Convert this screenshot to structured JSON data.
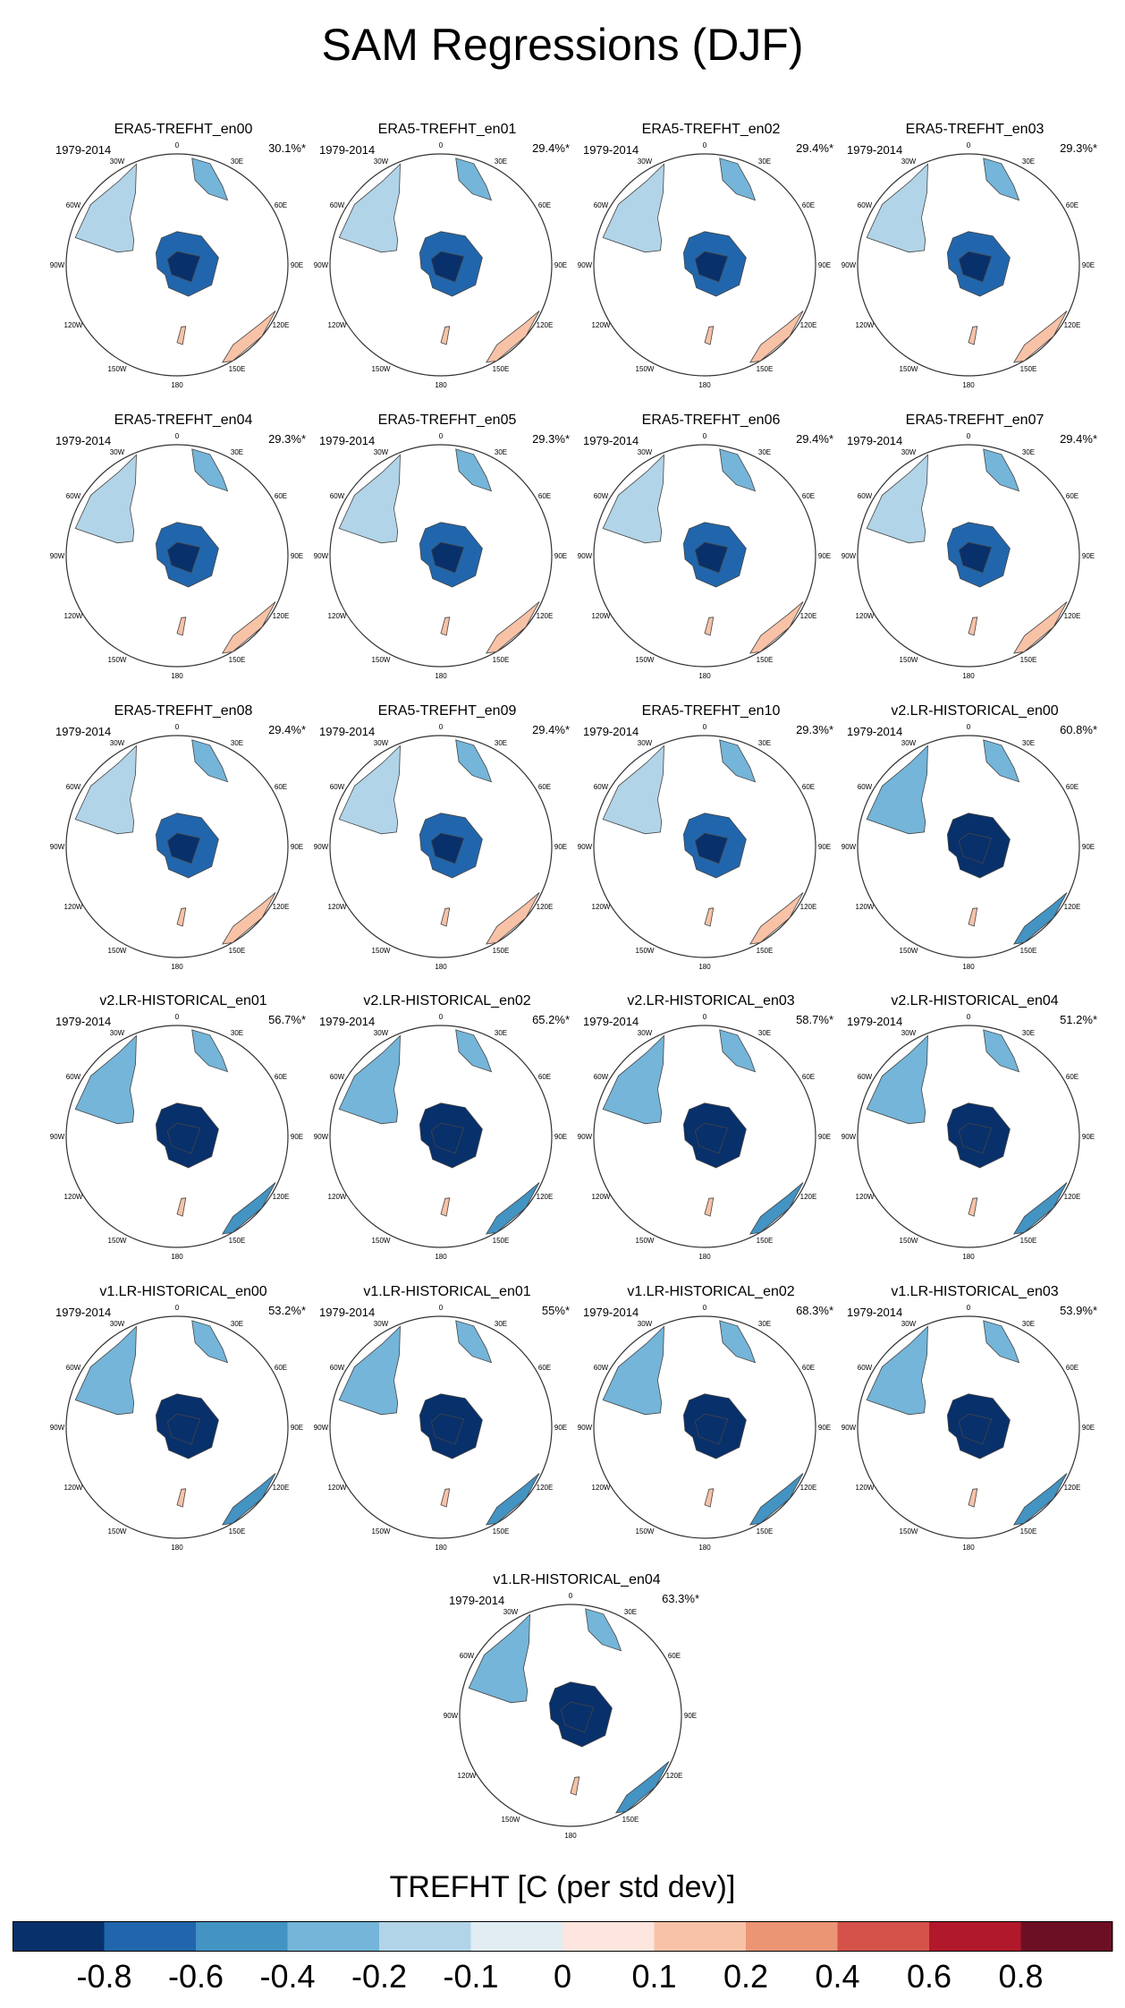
{
  "title": "SAM Regressions (DJF)",
  "chart_data": [
    {
      "type": "heatmap",
      "title": "ERA5-TREFHT_en00",
      "period": "1979-2014",
      "variance_explained": "30.1%*"
    },
    {
      "type": "heatmap",
      "title": "ERA5-TREFHT_en01",
      "period": "1979-2014",
      "variance_explained": "29.4%*"
    },
    {
      "type": "heatmap",
      "title": "ERA5-TREFHT_en02",
      "period": "1979-2014",
      "variance_explained": "29.4%*"
    },
    {
      "type": "heatmap",
      "title": "ERA5-TREFHT_en03",
      "period": "1979-2014",
      "variance_explained": "29.3%*"
    },
    {
      "type": "heatmap",
      "title": "ERA5-TREFHT_en04",
      "period": "1979-2014",
      "variance_explained": "29.3%*"
    },
    {
      "type": "heatmap",
      "title": "ERA5-TREFHT_en05",
      "period": "1979-2014",
      "variance_explained": "29.3%*"
    },
    {
      "type": "heatmap",
      "title": "ERA5-TREFHT_en06",
      "period": "1979-2014",
      "variance_explained": "29.4%*"
    },
    {
      "type": "heatmap",
      "title": "ERA5-TREFHT_en07",
      "period": "1979-2014",
      "variance_explained": "29.4%*"
    },
    {
      "type": "heatmap",
      "title": "ERA5-TREFHT_en08",
      "period": "1979-2014",
      "variance_explained": "29.4%*"
    },
    {
      "type": "heatmap",
      "title": "ERA5-TREFHT_en09",
      "period": "1979-2014",
      "variance_explained": "29.4%*"
    },
    {
      "type": "heatmap",
      "title": "ERA5-TREFHT_en10",
      "period": "1979-2014",
      "variance_explained": "29.3%*"
    },
    {
      "type": "heatmap",
      "title": "v2.LR-HISTORICAL_en00",
      "period": "1979-2014",
      "variance_explained": "60.8%*"
    },
    {
      "type": "heatmap",
      "title": "v2.LR-HISTORICAL_en01",
      "period": "1979-2014",
      "variance_explained": "56.7%*"
    },
    {
      "type": "heatmap",
      "title": "v2.LR-HISTORICAL_en02",
      "period": "1979-2014",
      "variance_explained": "65.2%*"
    },
    {
      "type": "heatmap",
      "title": "v2.LR-HISTORICAL_en03",
      "period": "1979-2014",
      "variance_explained": "58.7%*"
    },
    {
      "type": "heatmap",
      "title": "v2.LR-HISTORICAL_en04",
      "period": "1979-2014",
      "variance_explained": "51.2%*"
    },
    {
      "type": "heatmap",
      "title": "v1.LR-HISTORICAL_en00",
      "period": "1979-2014",
      "variance_explained": "53.2%*"
    },
    {
      "type": "heatmap",
      "title": "v1.LR-HISTORICAL_en01",
      "period": "1979-2014",
      "variance_explained": "55%*"
    },
    {
      "type": "heatmap",
      "title": "v1.LR-HISTORICAL_en02",
      "period": "1979-2014",
      "variance_explained": "68.3%*"
    },
    {
      "type": "heatmap",
      "title": "v1.LR-HISTORICAL_en03",
      "period": "1979-2014",
      "variance_explained": "53.9%*"
    },
    {
      "type": "heatmap",
      "title": "v1.LR-HISTORICAL_en04",
      "period": "1979-2014",
      "variance_explained": "63.3%*"
    }
  ],
  "longitude_labels": [
    "0",
    "30E",
    "60E",
    "90E",
    "120E",
    "150E",
    "180",
    "150W",
    "120W",
    "90W",
    "60W",
    "30W"
  ],
  "colorbar": {
    "title": "TREFHT [C (per std dev)]",
    "ticks": [
      "-0.8",
      "-0.6",
      "-0.4",
      "-0.2",
      "-0.1",
      "0",
      "0.1",
      "0.2",
      "0.4",
      "0.6",
      "0.8"
    ],
    "colors": [
      "#08306b",
      "#2166ac",
      "#4393c3",
      "#74b5d9",
      "#b2d4e8",
      "#e1ecf3",
      "#fce6df",
      "#f8c2a7",
      "#eb9574",
      "#d4524a",
      "#b2182b",
      "#6d0f24"
    ]
  }
}
